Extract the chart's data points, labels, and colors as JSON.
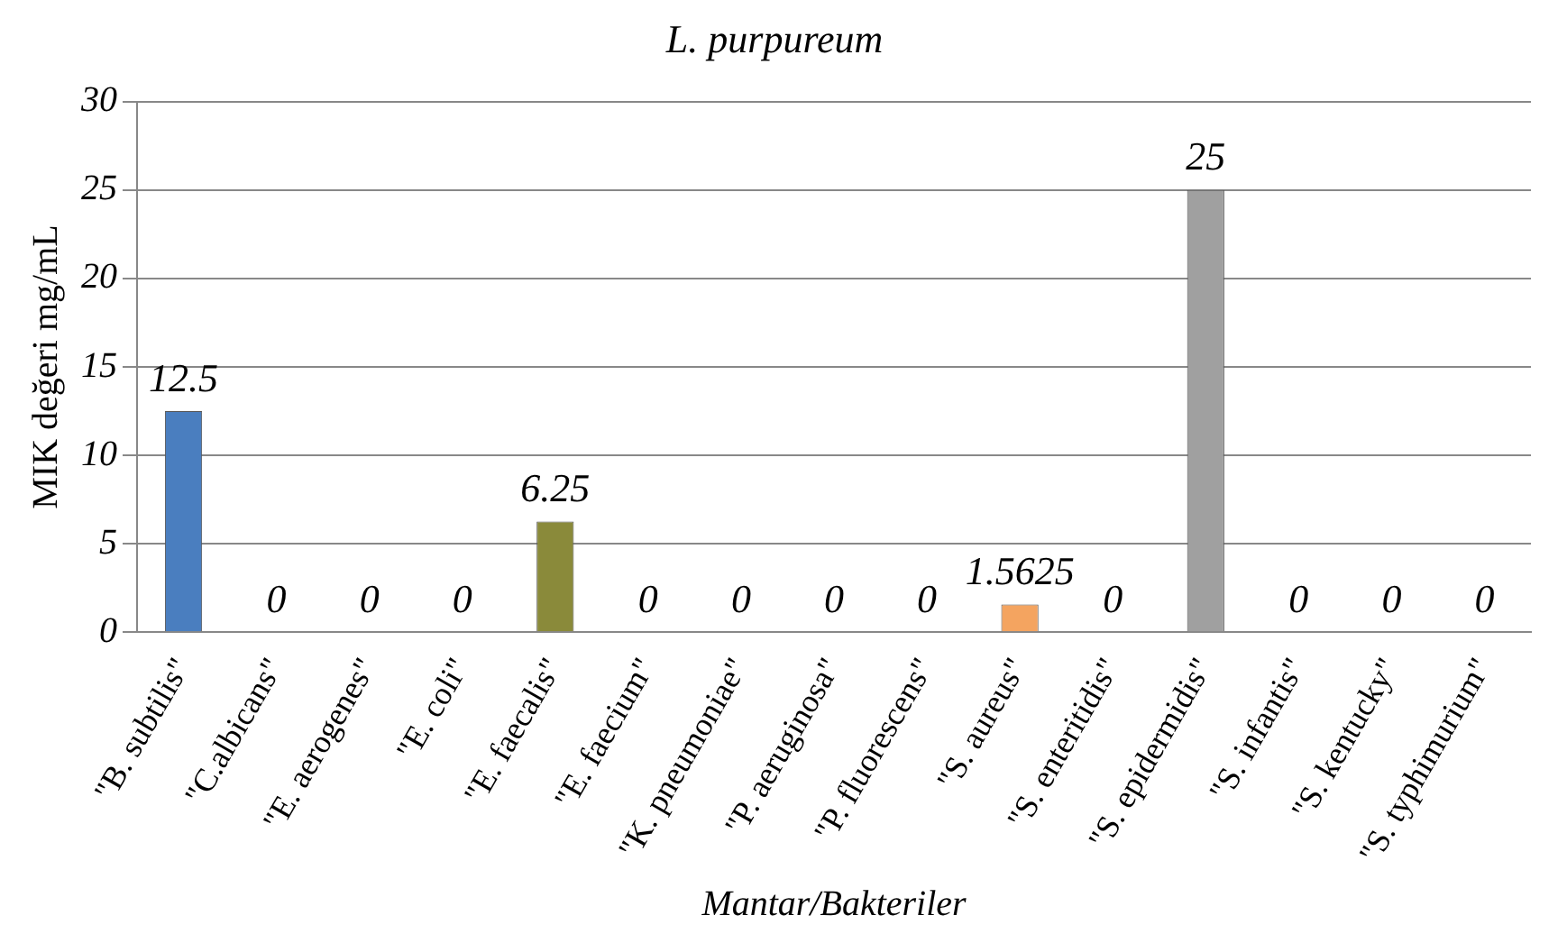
{
  "chart_data": {
    "type": "bar",
    "title": "L. purpureum",
    "xlabel": "Mantar/Bakteriler",
    "ylabel": "MIK değeri mg/mL",
    "categories": [
      "\"B. subtilis\"",
      "\"C.albicans\"",
      "\"E. aerogenes\"",
      "\"E. coli\"",
      "\"E. faecalis\"",
      "\"E. faecium\"",
      "\"K. pneumoniae\"",
      "\"P. aeruginosa\"",
      "\"P. fluorescens\"",
      "\"S. aureus\"",
      "\"S. enteritidis\"",
      "\"S. epidermidis\"",
      "\"S. infantis\"",
      "\"S. kentucky\"",
      "\"S. typhimurium\""
    ],
    "values": [
      12.5,
      0,
      0,
      0,
      6.25,
      0,
      0,
      0,
      0,
      1.5625,
      0,
      25,
      0,
      0,
      0
    ],
    "colors": [
      "#4a7ebf",
      "#b0413e",
      "#5f7d2e",
      "#d4a017",
      "#8a8a3a",
      "#d99059",
      "#8fa8d0",
      "#a3c083",
      "#8c7ab0",
      "#f4a460",
      "#3a3a3a",
      "#a0a0a0",
      "#4f6228",
      "#d8a98a",
      "#5b7fbf"
    ],
    "ylim": [
      0,
      30
    ],
    "yticks": [
      0,
      5,
      10,
      15,
      20,
      25,
      30
    ],
    "grid": "y",
    "data_labels": true
  }
}
